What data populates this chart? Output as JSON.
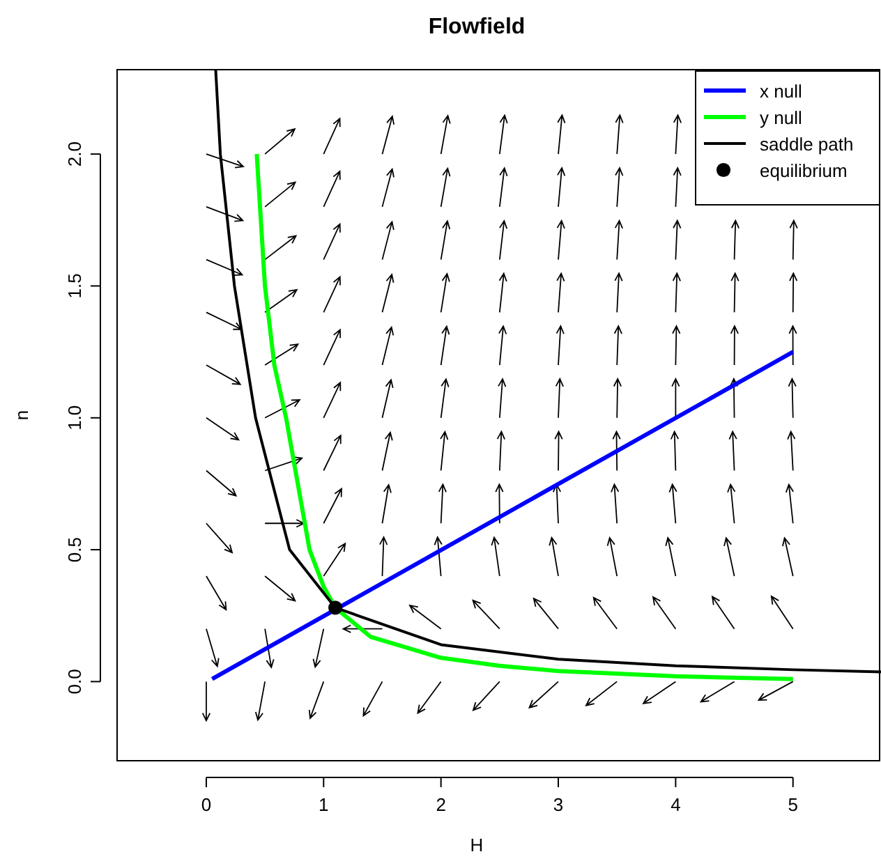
{
  "chart_data": {
    "type": "line",
    "title": "Flowfield",
    "xlabel": "H",
    "ylabel": "n",
    "xlim": [
      -0.76,
      5.75
    ],
    "ylim": [
      -0.3,
      2.32
    ],
    "xticks": [
      0,
      1,
      2,
      3,
      4,
      5
    ],
    "yticks": [
      {
        "value": 0,
        "label": "0.0"
      },
      {
        "value": 0.5,
        "label": "0.5"
      },
      {
        "value": 1,
        "label": "1.0"
      },
      {
        "value": 1.5,
        "label": "1.5"
      },
      {
        "value": 2,
        "label": "2.0"
      }
    ],
    "grid": false,
    "legend": "top right",
    "marker": "none",
    "line_style": "solid",
    "series": [
      {
        "name": "x null",
        "color": "#0000ff",
        "x": [
          0.05,
          5
        ],
        "values": [
          0.01,
          1.25
        ]
      },
      {
        "name": "y null",
        "color": "#00ff00",
        "x": [
          0.43,
          0.5,
          0.58,
          0.68,
          0.78,
          0.88,
          1.0,
          1.1,
          1.4,
          2,
          2.5,
          3,
          4,
          5
        ],
        "values": [
          2.0,
          1.5,
          1.2,
          1.0,
          0.75,
          0.5,
          0.36,
          0.28,
          0.17,
          0.09,
          0.06,
          0.04,
          0.02,
          0.01
        ]
      },
      {
        "name": "saddle path",
        "color": "#000000",
        "x": [
          0.08,
          0.12,
          0.24,
          0.42,
          0.71,
          1.1,
          2,
          3,
          4,
          5,
          5.75
        ],
        "values": [
          2.32,
          2.0,
          1.5,
          1.0,
          0.5,
          0.28,
          0.14,
          0.085,
          0.06,
          0.045,
          0.037
        ]
      },
      {
        "name": "equilibrium",
        "color": "#000000",
        "type": "scatter",
        "marker": "circle",
        "x": [
          1.1
        ],
        "values": [
          0.28
        ]
      }
    ]
  }
}
